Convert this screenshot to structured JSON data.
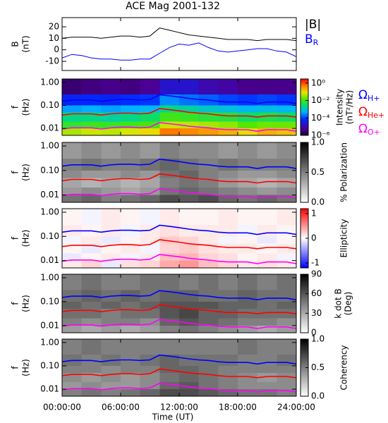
{
  "time_axis": {
    "xlim": [
      0,
      24
    ],
    "xticks": [
      {
        "value": 0,
        "label": "00:00:00"
      },
      {
        "value": 6,
        "label": "06:00:00"
      },
      {
        "value": 12,
        "label": "12:00:00"
      },
      {
        "value": 18,
        "label": "18:00:00"
      },
      {
        "value": 24,
        "label": "24:00:00"
      }
    ],
    "xlabel": "Time (UT)",
    "x": [
      0,
      1,
      2,
      3,
      4,
      5,
      6,
      7,
      8,
      9,
      10,
      11,
      12,
      13,
      14,
      15,
      16,
      17,
      18,
      19,
      20,
      21,
      22,
      23,
      24
    ]
  },
  "spectrogram_grid": {
    "x_bins": [
      0,
      2,
      4,
      6,
      8,
      10,
      12,
      14,
      16,
      18,
      20,
      22,
      24
    ],
    "f_bins": [
      0.005,
      0.01,
      0.02,
      0.05,
      0.1,
      0.3,
      1.4
    ]
  },
  "gyrofrequencies": {
    "series": [
      {
        "name": "Ω",
        "subscript": "H+",
        "color": "#0000ff",
        "values": [
          0.15,
          0.17,
          0.17,
          0.17,
          0.15,
          0.17,
          0.18,
          0.18,
          0.17,
          0.18,
          0.29,
          0.26,
          0.23,
          0.2,
          0.18,
          0.17,
          0.15,
          0.14,
          0.14,
          0.14,
          0.12,
          0.14,
          0.14,
          0.14,
          0.12
        ]
      },
      {
        "name": "Ω",
        "subscript": "He+",
        "color": "#ff0000",
        "values": [
          0.038,
          0.043,
          0.043,
          0.043,
          0.038,
          0.043,
          0.046,
          0.046,
          0.043,
          0.046,
          0.073,
          0.065,
          0.058,
          0.05,
          0.046,
          0.043,
          0.038,
          0.035,
          0.035,
          0.035,
          0.031,
          0.035,
          0.035,
          0.035,
          0.031
        ]
      },
      {
        "name": "Ω",
        "subscript": "O+",
        "color": "#ff00ff",
        "values": [
          0.0094,
          0.0106,
          0.0106,
          0.0106,
          0.0094,
          0.0106,
          0.0114,
          0.0114,
          0.0106,
          0.0114,
          0.018,
          0.016,
          0.0144,
          0.0125,
          0.0114,
          0.0106,
          0.0094,
          0.0088,
          0.0088,
          0.0088,
          0.0075,
          0.0088,
          0.0088,
          0.0088,
          0.0075
        ]
      }
    ]
  },
  "chart_data": [
    {
      "type": "line",
      "title": "ACE Mag 2001-132",
      "ylabel": "B",
      "yunit": "(nT)",
      "ylim": [
        -18,
        28
      ],
      "yticks": [
        -10,
        0,
        10,
        20
      ],
      "series": [
        {
          "name": "|B|",
          "color": "#000000",
          "values": [
            10,
            11,
            11,
            11,
            10,
            11,
            12,
            12,
            11,
            12,
            19,
            17,
            15,
            13,
            12,
            11,
            10,
            9,
            9,
            9,
            8,
            9,
            9,
            9,
            8
          ]
        },
        {
          "name": "B",
          "subscript": "R",
          "color": "#0000ff",
          "values": [
            -7,
            -4,
            -5,
            -7,
            -8,
            -8,
            -9,
            -9,
            -8,
            -8,
            -3,
            2,
            5,
            4,
            6,
            2,
            -1,
            -2,
            -1,
            0,
            1,
            1,
            -1,
            -2,
            -6
          ]
        }
      ]
    },
    {
      "type": "heatmap",
      "ylabel": "f",
      "yunit": "(Hz)",
      "ylim": [
        0.005,
        1.4
      ],
      "log_y": true,
      "yticks": [
        0.01,
        {
          "value": 0.1,
          "label": "0.10"
        },
        {
          "value": 1,
          "label": "1.00"
        }
      ],
      "colormap": "rainbow",
      "zlim": [
        1e-06,
        3
      ],
      "log_z": true,
      "zticks": [
        {
          "value": 1,
          "label": "10⁰"
        },
        {
          "value": 0.01,
          "label": "10⁻²"
        },
        {
          "value": 0.0001,
          "label": "10⁻⁴"
        },
        {
          "value": 1e-06,
          "label": "10⁻⁶"
        }
      ],
      "zlabel": "Intensity",
      "zunit": "(nT²/Hz)",
      "gyro_legend": true,
      "z": [
        [
          0.04,
          0.007,
          0.002,
          0.0004,
          5e-05,
          3e-06
        ],
        [
          0.06,
          0.009,
          0.002,
          0.0005,
          6e-05,
          4e-06
        ],
        [
          0.05,
          0.008,
          0.0015,
          0.0004,
          5e-05,
          5e-06
        ],
        [
          0.07,
          0.01,
          0.002,
          0.0005,
          7e-05,
          4e-06
        ],
        [
          0.1,
          0.012,
          0.003,
          0.0006,
          8e-05,
          6e-06
        ],
        [
          0.5,
          0.06,
          0.01,
          0.002,
          0.0003,
          2e-05
        ],
        [
          0.4,
          0.05,
          0.008,
          0.0015,
          0.0002,
          2e-05
        ],
        [
          0.3,
          0.04,
          0.006,
          0.001,
          0.00015,
          1e-05
        ],
        [
          0.2,
          0.03,
          0.005,
          0.0008,
          0.0001,
          8e-06
        ],
        [
          0.1,
          0.015,
          0.003,
          0.0006,
          8e-05,
          5e-06
        ],
        [
          0.2,
          0.02,
          0.004,
          0.0007,
          0.0001,
          5e-06
        ],
        [
          0.15,
          0.02,
          0.003,
          0.0006,
          8e-05,
          5e-06
        ]
      ]
    },
    {
      "type": "heatmap",
      "ylabel": "f",
      "yunit": "(Hz)",
      "ylim": [
        0.005,
        1.4
      ],
      "log_y": true,
      "yticks": [
        0.01,
        {
          "value": 0.1,
          "label": "0.10"
        },
        {
          "value": 1,
          "label": "1.00"
        }
      ],
      "colormap": "gray_r",
      "zlim": [
        0,
        1
      ],
      "log_z": false,
      "zticks": [
        {
          "value": 0,
          "label": "0.0"
        },
        0.5,
        {
          "value": 1,
          "label": "1.0"
        }
      ],
      "zlabel": "% Polarization",
      "z": [
        [
          0.55,
          0.4,
          0.35,
          0.45,
          0.5,
          0.4
        ],
        [
          0.6,
          0.45,
          0.3,
          0.4,
          0.55,
          0.45
        ],
        [
          0.5,
          0.4,
          0.35,
          0.4,
          0.5,
          0.4
        ],
        [
          0.55,
          0.35,
          0.3,
          0.45,
          0.5,
          0.45
        ],
        [
          0.6,
          0.4,
          0.35,
          0.4,
          0.55,
          0.4
        ],
        [
          0.7,
          0.55,
          0.5,
          0.55,
          0.6,
          0.5
        ],
        [
          0.65,
          0.6,
          0.55,
          0.6,
          0.55,
          0.45
        ],
        [
          0.7,
          0.55,
          0.5,
          0.5,
          0.5,
          0.45
        ],
        [
          0.6,
          0.5,
          0.4,
          0.45,
          0.55,
          0.4
        ],
        [
          0.55,
          0.45,
          0.35,
          0.4,
          0.5,
          0.45
        ],
        [
          0.6,
          0.4,
          0.3,
          0.4,
          0.5,
          0.4
        ],
        [
          0.55,
          0.45,
          0.35,
          0.45,
          0.5,
          0.45
        ]
      ]
    },
    {
      "type": "heatmap",
      "ylabel": "f",
      "yunit": "(Hz)",
      "ylim": [
        0.005,
        1.4
      ],
      "log_y": true,
      "yticks": [
        0.01,
        {
          "value": 0.1,
          "label": "0.10"
        },
        {
          "value": 1,
          "label": "1.00"
        }
      ],
      "colormap": "bwr",
      "zlim": [
        -1.2,
        1.2
      ],
      "log_z": false,
      "zticks": [
        -1,
        0,
        1
      ],
      "zlabel": "Ellipticity",
      "z": [
        [
          0.1,
          -0.1,
          0.05,
          -0.05,
          0.1,
          0.05
        ],
        [
          0.2,
          0.05,
          -0.1,
          0.1,
          0.05,
          -0.05
        ],
        [
          -0.1,
          0.1,
          0.05,
          -0.1,
          0.1,
          0.1
        ],
        [
          0.15,
          -0.05,
          0.1,
          0.05,
          -0.05,
          0.05
        ],
        [
          0.2,
          0.1,
          -0.05,
          0.1,
          0.1,
          -0.05
        ],
        [
          0.4,
          0.3,
          0.2,
          0.25,
          0.15,
          0.1
        ],
        [
          0.5,
          0.35,
          0.25,
          0.2,
          0.1,
          0.05
        ],
        [
          0.3,
          0.2,
          0.15,
          0.1,
          0.1,
          0.05
        ],
        [
          0.2,
          0.15,
          0.1,
          -0.05,
          0.1,
          0.1
        ],
        [
          0.1,
          0.05,
          0.1,
          0.05,
          -0.05,
          0.05
        ],
        [
          0.15,
          0.1,
          0.05,
          -0.1,
          0.1,
          0.05
        ],
        [
          0.1,
          -0.05,
          0.1,
          0.05,
          0.05,
          0.1
        ]
      ]
    },
    {
      "type": "heatmap",
      "ylabel": "f",
      "yunit": "(Hz)",
      "ylim": [
        0.005,
        1.4
      ],
      "log_y": true,
      "yticks": [
        0.01,
        {
          "value": 0.1,
          "label": "0.10"
        },
        {
          "value": 1,
          "label": "1.00"
        }
      ],
      "colormap": "gray_r",
      "zlim": [
        0,
        90
      ],
      "log_z": false,
      "zticks": [
        0,
        30,
        60,
        90
      ],
      "zlabel": "k dot B",
      "zunit": "(Deg)",
      "z": [
        [
          35,
          45,
          50,
          55,
          50,
          45
        ],
        [
          30,
          40,
          50,
          50,
          55,
          50
        ],
        [
          35,
          45,
          45,
          55,
          50,
          45
        ],
        [
          30,
          45,
          50,
          50,
          55,
          45
        ],
        [
          35,
          40,
          50,
          55,
          50,
          50
        ],
        [
          45,
          55,
          60,
          60,
          55,
          50
        ],
        [
          50,
          60,
          65,
          60,
          55,
          45
        ],
        [
          45,
          55,
          55,
          60,
          50,
          50
        ],
        [
          40,
          50,
          55,
          55,
          50,
          45
        ],
        [
          35,
          45,
          50,
          55,
          55,
          50
        ],
        [
          30,
          45,
          50,
          50,
          50,
          45
        ],
        [
          35,
          40,
          50,
          55,
          50,
          50
        ]
      ]
    },
    {
      "type": "heatmap",
      "ylabel": "f",
      "yunit": "(Hz)",
      "ylim": [
        0.005,
        1.4
      ],
      "log_y": true,
      "yticks": [
        0.01,
        {
          "value": 0.1,
          "label": "0.10"
        },
        {
          "value": 1,
          "label": "1.00"
        }
      ],
      "colormap": "gray_r",
      "zlim": [
        0,
        1
      ],
      "log_z": false,
      "zticks": [
        {
          "value": 0,
          "label": "0.0"
        },
        0.5,
        {
          "value": 1,
          "label": "1.0"
        }
      ],
      "zlabel": "Coherency",
      "z": [
        [
          0.5,
          0.4,
          0.45,
          0.5,
          0.55,
          0.5
        ],
        [
          0.55,
          0.45,
          0.4,
          0.5,
          0.5,
          0.55
        ],
        [
          0.5,
          0.4,
          0.45,
          0.45,
          0.55,
          0.5
        ],
        [
          0.55,
          0.4,
          0.4,
          0.5,
          0.5,
          0.5
        ],
        [
          0.6,
          0.45,
          0.45,
          0.5,
          0.55,
          0.5
        ],
        [
          0.7,
          0.6,
          0.55,
          0.6,
          0.6,
          0.5
        ],
        [
          0.7,
          0.65,
          0.6,
          0.6,
          0.55,
          0.5
        ],
        [
          0.65,
          0.55,
          0.55,
          0.55,
          0.55,
          0.5
        ],
        [
          0.6,
          0.5,
          0.5,
          0.5,
          0.55,
          0.5
        ],
        [
          0.55,
          0.45,
          0.45,
          0.5,
          0.5,
          0.55
        ],
        [
          0.55,
          0.45,
          0.4,
          0.5,
          0.5,
          0.5
        ],
        [
          0.5,
          0.45,
          0.45,
          0.5,
          0.55,
          0.5
        ]
      ]
    }
  ]
}
